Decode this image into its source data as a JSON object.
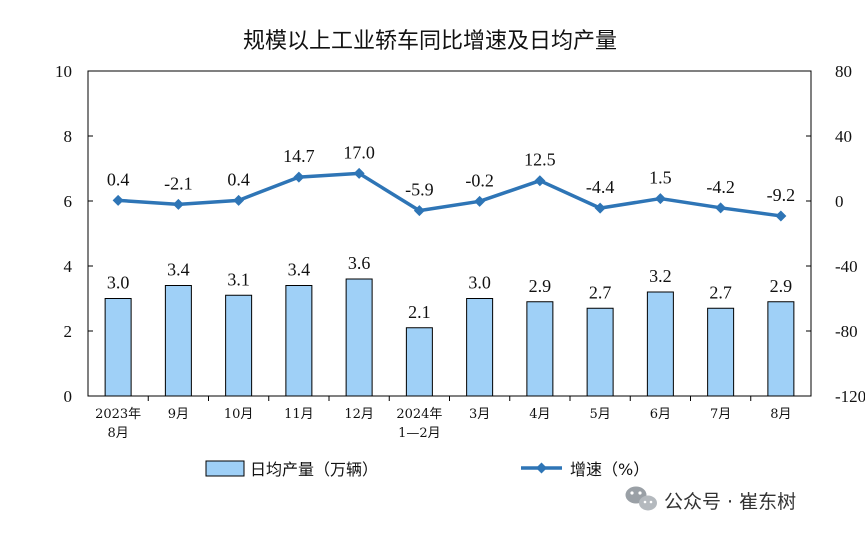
{
  "chart_data": {
    "type": "bar+line",
    "title": "规模以上工业轿车同比增速及日均产量",
    "categories": [
      [
        "2023年",
        "8月"
      ],
      [
        "9月"
      ],
      [
        "10月"
      ],
      [
        "11月"
      ],
      [
        "12月"
      ],
      [
        "2024年",
        "1—2月"
      ],
      [
        "3月"
      ],
      [
        "4月"
      ],
      [
        "5月"
      ],
      [
        "6月"
      ],
      [
        "7月"
      ],
      [
        "8月"
      ]
    ],
    "series": [
      {
        "name": "日均产量（万辆）",
        "type": "bar",
        "axis": "left",
        "color": "#9fd0f7",
        "values": [
          3.0,
          3.4,
          3.1,
          3.4,
          3.6,
          2.1,
          3.0,
          2.9,
          2.7,
          3.2,
          2.7,
          2.9
        ],
        "labels": [
          "3.0",
          "3.4",
          "3.1",
          "3.4",
          "3.6",
          "2.1",
          "3.0",
          "2.9",
          "2.7",
          "3.2",
          "2.7",
          "2.9"
        ]
      },
      {
        "name": "增速（%）",
        "type": "line",
        "axis": "right",
        "color": "#2e75b6",
        "values": [
          0.4,
          -2.1,
          0.4,
          14.7,
          17.0,
          -5.9,
          -0.2,
          12.5,
          -4.4,
          1.5,
          -4.2,
          -9.2
        ],
        "labels": [
          "0.4",
          "-2.1",
          "0.4",
          "14.7",
          "17.0",
          "-5.9",
          "-0.2",
          "12.5",
          "-4.4",
          "1.5",
          "-4.2",
          "-9.2"
        ]
      }
    ],
    "y_left": {
      "min": 0,
      "max": 10,
      "ticks": [
        "0",
        "2",
        "4",
        "6",
        "8",
        "10"
      ]
    },
    "y_right": {
      "min": -120,
      "max": 80,
      "ticks": [
        "-120",
        "-80",
        "-40",
        "0",
        "40",
        "80"
      ]
    },
    "grid": false,
    "legend_position": "bottom"
  },
  "watermark": {
    "text": "公众号 · 崔东树",
    "icon": "wechat-icon"
  }
}
